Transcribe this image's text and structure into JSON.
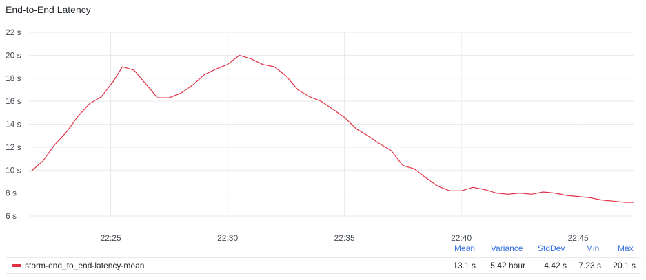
{
  "panel": {
    "title": "End-to-End Latency"
  },
  "colors": {
    "series": "#e02f44",
    "grid": "#e9e9e9",
    "stat_header": "#3871dc"
  },
  "chart_data": {
    "type": "line",
    "title": "End-to-End Latency",
    "xlabel": "",
    "ylabel": "",
    "x_ticks": [
      "22:25",
      "22:30",
      "22:35",
      "22:40",
      "22:45"
    ],
    "x_tick_minutes": [
      25,
      30,
      35,
      40,
      45
    ],
    "y_ticks": [
      "6 s",
      "8 s",
      "10 s",
      "12 s",
      "14 s",
      "16 s",
      "18 s",
      "20 s",
      "22 s"
    ],
    "y_tick_values": [
      6,
      8,
      10,
      12,
      14,
      16,
      18,
      20,
      22
    ],
    "xlim_minutes": [
      21.5,
      47.4
    ],
    "ylim": [
      6,
      22
    ],
    "grid": true,
    "legend_placement": "bottom",
    "series": [
      {
        "name": "storm-end_to_end-latency-mean",
        "x_minutes": [
          21.6,
          22.1,
          22.6,
          23.1,
          23.6,
          24.1,
          24.6,
          25.1,
          25.5,
          26.0,
          26.5,
          27.0,
          27.5,
          28.0,
          28.5,
          29.0,
          29.5,
          30.0,
          30.5,
          31.0,
          31.5,
          32.0,
          32.5,
          33.0,
          33.5,
          34.0,
          34.5,
          35.0,
          35.5,
          36.0,
          36.5,
          37.0,
          37.5,
          38.0,
          38.5,
          39.0,
          39.5,
          40.0,
          40.5,
          41.0,
          41.5,
          42.0,
          42.5,
          43.0,
          43.5,
          44.0,
          44.5,
          45.0,
          45.5,
          46.0,
          46.5,
          47.0,
          47.4
        ],
        "values": [
          9.9,
          10.8,
          12.2,
          13.3,
          14.7,
          15.8,
          16.4,
          17.7,
          19.0,
          18.7,
          17.5,
          16.3,
          16.3,
          16.7,
          17.4,
          18.3,
          18.8,
          19.2,
          20.0,
          19.7,
          19.2,
          19.0,
          18.2,
          17.0,
          16.4,
          16.0,
          15.3,
          14.6,
          13.6,
          13.0,
          12.3,
          11.7,
          10.4,
          10.1,
          9.3,
          8.6,
          8.2,
          8.2,
          8.5,
          8.3,
          8.0,
          7.9,
          8.0,
          7.9,
          8.1,
          8.0,
          7.8,
          7.7,
          7.6,
          7.4,
          7.3,
          7.2,
          7.2
        ]
      }
    ]
  },
  "legend": {
    "headers": {
      "mean": "Mean",
      "variance": "Variance",
      "stddev": "StdDev",
      "min": "Min",
      "max": "Max"
    },
    "rows": [
      {
        "name": "storm-end_to_end-latency-mean",
        "mean": "13.1 s",
        "variance": "5.42 hour",
        "stddev": "4.42 s",
        "min": "7.23 s",
        "max": "20.1 s"
      }
    ]
  }
}
